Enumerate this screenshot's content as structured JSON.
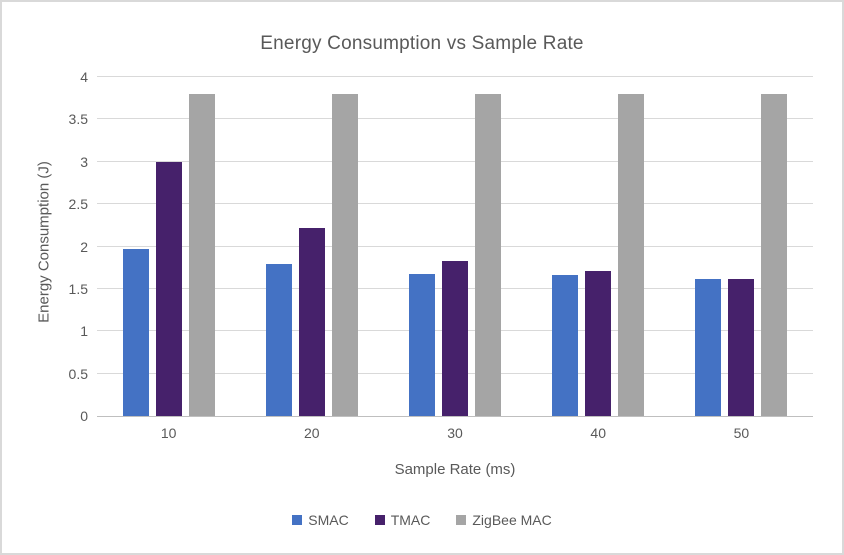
{
  "chart_data": {
    "type": "bar",
    "title": "Energy Consumption vs Sample Rate",
    "xlabel": "Sample Rate (ms)",
    "ylabel": "Energy Consumption (J)",
    "categories": [
      "10",
      "20",
      "30",
      "40",
      "50"
    ],
    "series": [
      {
        "name": "SMAC",
        "color": "#4472C4",
        "values": [
          1.97,
          1.79,
          1.68,
          1.66,
          1.62
        ]
      },
      {
        "name": "TMAC",
        "color": "#46216B",
        "values": [
          3.0,
          2.22,
          1.83,
          1.71,
          1.62
        ]
      },
      {
        "name": "ZigBee MAC",
        "color": "#A5A5A5",
        "values": [
          3.8,
          3.8,
          3.8,
          3.8,
          3.8
        ]
      }
    ],
    "ylim": [
      0,
      4
    ],
    "y_ticks": [
      "0",
      "0.5",
      "1",
      "1.5",
      "2",
      "2.5",
      "3",
      "3.5",
      "4"
    ],
    "grid": true,
    "legend_position": "bottom"
  },
  "colors": {
    "text": "#595959",
    "gridline": "#D9D9D9",
    "axis_line": "#BFBFBF",
    "border": "#D9D9D9",
    "background": "#FFFFFF"
  }
}
